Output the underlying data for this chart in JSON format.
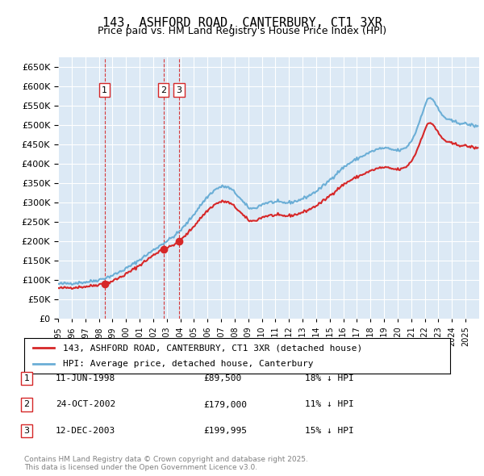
{
  "title": "143, ASHFORD ROAD, CANTERBURY, CT1 3XR",
  "subtitle": "Price paid vs. HM Land Registry's House Price Index (HPI)",
  "legend_line1": "143, ASHFORD ROAD, CANTERBURY, CT1 3XR (detached house)",
  "legend_line2": "HPI: Average price, detached house, Canterbury",
  "transactions": [
    {
      "num": 1,
      "date": "11-JUN-1998",
      "price": 89500,
      "pct": "18%",
      "dir": "↓"
    },
    {
      "num": 2,
      "date": "24-OCT-2002",
      "price": 179000,
      "pct": "11%",
      "dir": "↓"
    },
    {
      "num": 3,
      "date": "12-DEC-2003",
      "price": 199995,
      "pct": "15%",
      "dir": "↓"
    }
  ],
  "footer": "Contains HM Land Registry data © Crown copyright and database right 2025.\nThis data is licensed under the Open Government Licence v3.0.",
  "hpi_color": "#6baed6",
  "price_color": "#d62728",
  "marker_color": "#d62728",
  "background_color": "#dce9f5",
  "grid_color": "#ffffff",
  "vline_color": "#d62728",
  "ylim": [
    0,
    675000
  ],
  "yticks": [
    0,
    50000,
    100000,
    150000,
    200000,
    250000,
    300000,
    350000,
    400000,
    450000,
    500000,
    550000,
    600000,
    650000
  ],
  "year_start": 1995,
  "year_end": 2026
}
